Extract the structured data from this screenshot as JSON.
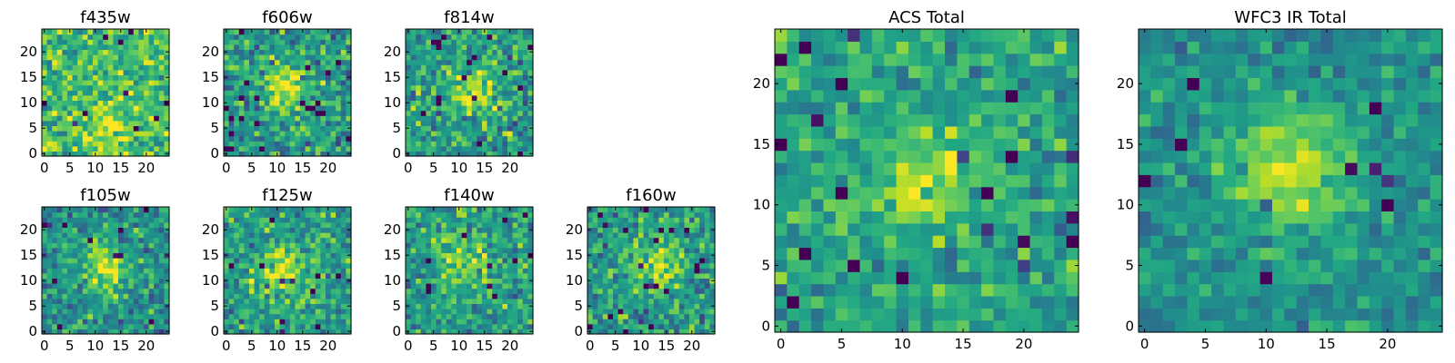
{
  "chart_data": [
    {
      "type": "heatmap",
      "title": "f435w",
      "x_ticks": [
        "0",
        "5",
        "10",
        "15",
        "20"
      ],
      "y_ticks": [
        "0",
        "5",
        "10",
        "15",
        "20"
      ],
      "xlim": [
        0,
        25
      ],
      "ylim": [
        0,
        25
      ],
      "colormap": "viridis",
      "source_blob": {
        "x": 12,
        "y": 6,
        "sigma": 4,
        "amp": 0.18
      },
      "noise": 0.55,
      "base": 0.68,
      "seed": 11
    },
    {
      "type": "heatmap",
      "title": "f606w",
      "x_ticks": [
        "0",
        "5",
        "10",
        "15",
        "20"
      ],
      "y_ticks": [
        "0",
        "5",
        "10",
        "15",
        "20"
      ],
      "xlim": [
        0,
        25
      ],
      "ylim": [
        0,
        25
      ],
      "colormap": "viridis",
      "source_blob": {
        "x": 12,
        "y": 13,
        "sigma": 3,
        "amp": 0.35
      },
      "noise": 0.55,
      "base": 0.55,
      "seed": 23
    },
    {
      "type": "heatmap",
      "title": "f814w",
      "x_ticks": [
        "0",
        "5",
        "10",
        "15",
        "20"
      ],
      "y_ticks": [
        "0",
        "5",
        "10",
        "15",
        "20"
      ],
      "xlim": [
        0,
        25
      ],
      "ylim": [
        0,
        25
      ],
      "colormap": "viridis",
      "source_blob": {
        "x": 13,
        "y": 12,
        "sigma": 3,
        "amp": 0.32
      },
      "noise": 0.55,
      "base": 0.55,
      "seed": 37
    },
    {
      "type": "heatmap",
      "title": "f105w",
      "x_ticks": [
        "0",
        "5",
        "10",
        "15",
        "20"
      ],
      "y_ticks": [
        "0",
        "5",
        "10",
        "15",
        "20"
      ],
      "xlim": [
        0,
        25
      ],
      "ylim": [
        0,
        25
      ],
      "colormap": "viridis",
      "source_blob": {
        "x": 12,
        "y": 13,
        "sigma": 3.5,
        "amp": 0.4
      },
      "noise": 0.5,
      "base": 0.5,
      "seed": 41
    },
    {
      "type": "heatmap",
      "title": "f125w",
      "x_ticks": [
        "0",
        "5",
        "10",
        "15",
        "20"
      ],
      "y_ticks": [
        "0",
        "5",
        "10",
        "15",
        "20"
      ],
      "xlim": [
        0,
        25
      ],
      "ylim": [
        0,
        25
      ],
      "colormap": "viridis",
      "source_blob": {
        "x": 11,
        "y": 12,
        "sigma": 4,
        "amp": 0.3
      },
      "noise": 0.5,
      "base": 0.55,
      "seed": 53
    },
    {
      "type": "heatmap",
      "title": "f140w",
      "x_ticks": [
        "0",
        "5",
        "10",
        "15",
        "20"
      ],
      "y_ticks": [
        "0",
        "5",
        "10",
        "15",
        "20"
      ],
      "xlim": [
        0,
        25
      ],
      "ylim": [
        0,
        25
      ],
      "colormap": "viridis",
      "source_blob": {
        "x": 12,
        "y": 14,
        "sigma": 4,
        "amp": 0.28
      },
      "noise": 0.55,
      "base": 0.55,
      "seed": 67
    },
    {
      "type": "heatmap",
      "title": "f160w",
      "x_ticks": [
        "0",
        "5",
        "10",
        "15",
        "20"
      ],
      "y_ticks": [
        "0",
        "5",
        "10",
        "15",
        "20"
      ],
      "xlim": [
        0,
        25
      ],
      "ylim": [
        0,
        25
      ],
      "colormap": "viridis",
      "source_blob": {
        "x": 13,
        "y": 13,
        "sigma": 3.5,
        "amp": 0.3
      },
      "noise": 0.55,
      "base": 0.55,
      "seed": 79
    },
    {
      "type": "heatmap",
      "title": "ACS Total",
      "x_ticks": [
        "0",
        "5",
        "10",
        "15",
        "20"
      ],
      "y_ticks": [
        "0",
        "5",
        "10",
        "15",
        "20"
      ],
      "xlim": [
        0,
        25
      ],
      "ylim": [
        0,
        25
      ],
      "colormap": "viridis",
      "source_blob": {
        "x": 12,
        "y": 12,
        "sigma": 3,
        "amp": 0.32
      },
      "noise": 0.42,
      "base": 0.58,
      "seed": 97
    },
    {
      "type": "heatmap",
      "title": "WFC3 IR Total",
      "x_ticks": [
        "0",
        "5",
        "10",
        "15",
        "20"
      ],
      "y_ticks": [
        "0",
        "5",
        "10",
        "15",
        "20"
      ],
      "xlim": [
        0,
        25
      ],
      "ylim": [
        0,
        25
      ],
      "colormap": "viridis",
      "source_blob": {
        "x": 12,
        "y": 13,
        "sigma": 3.5,
        "amp": 0.4
      },
      "noise": 0.35,
      "base": 0.5,
      "seed": 113
    }
  ]
}
